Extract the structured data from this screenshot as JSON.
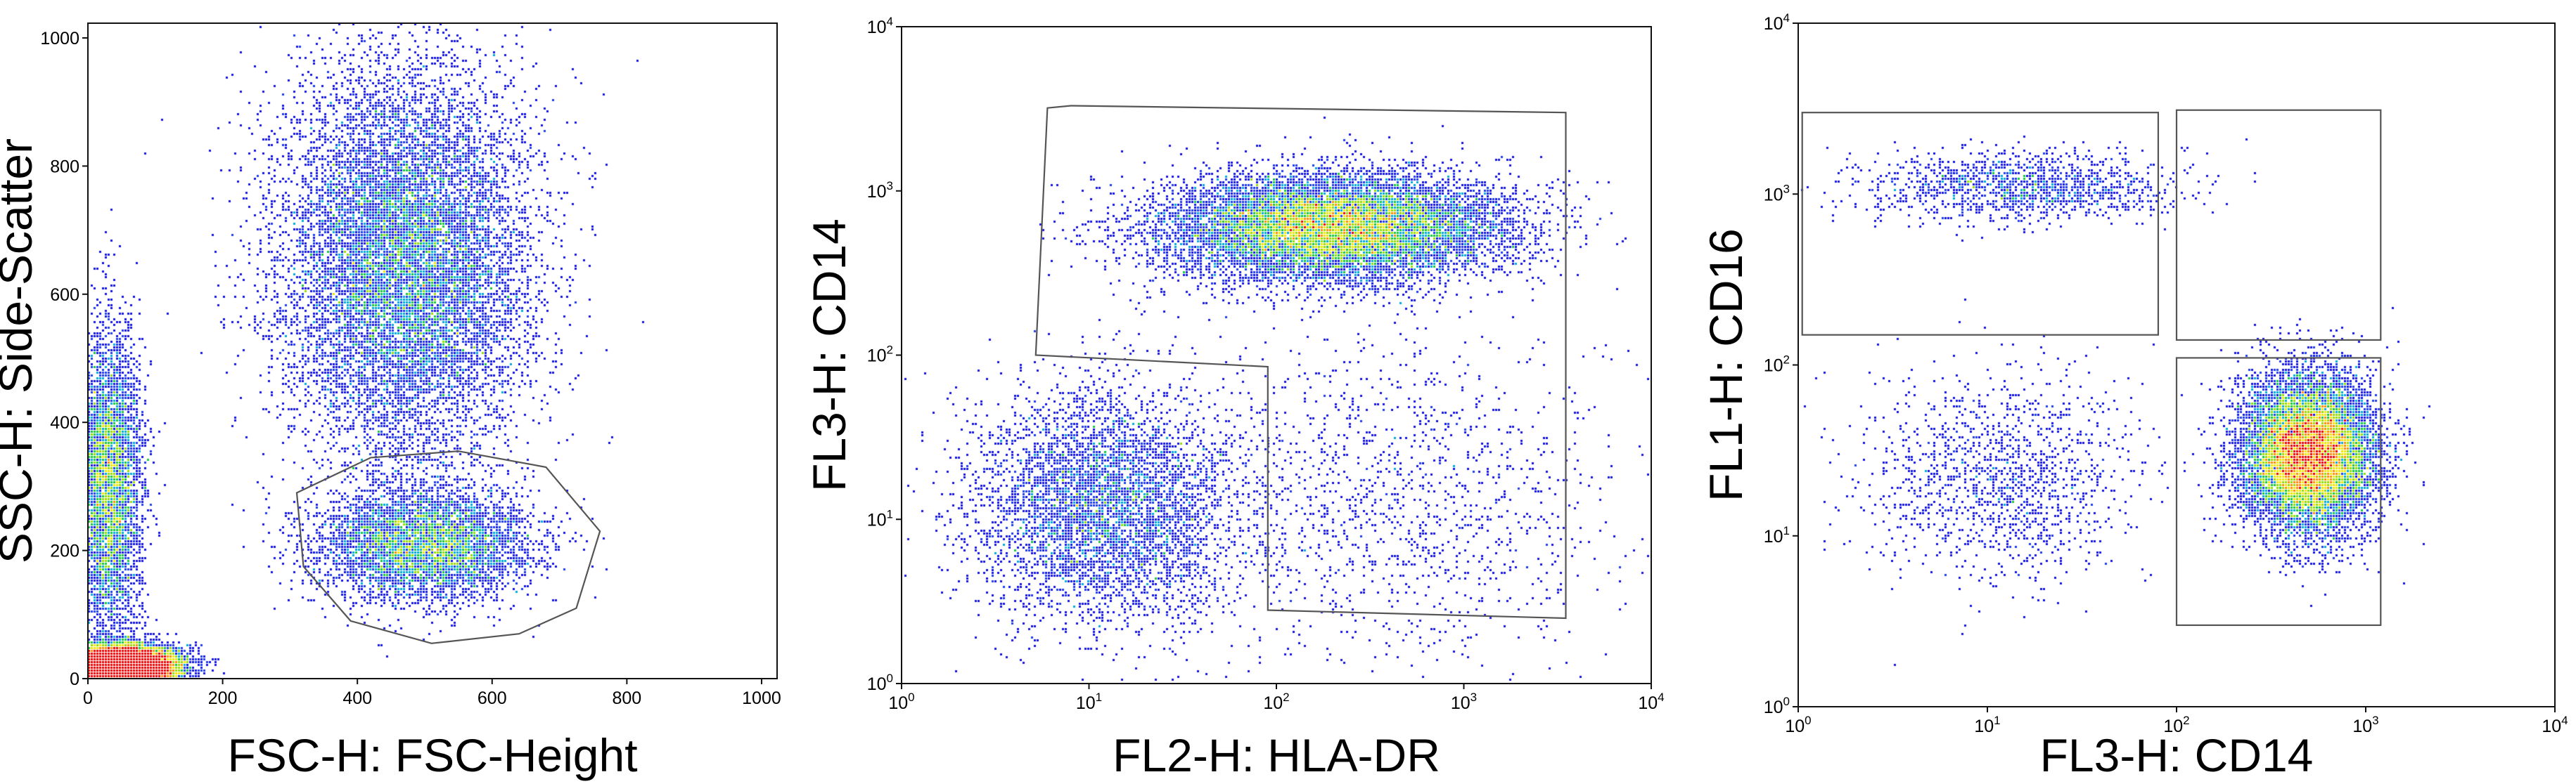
{
  "chart_data": [
    {
      "type": "scatter",
      "title": "",
      "xlabel": "FSC-H: FSC-Height",
      "ylabel": "SSC-H: Side-Scatter",
      "xscale": "linear",
      "yscale": "linear",
      "xlim": [
        0,
        1023
      ],
      "ylim": [
        0,
        1023
      ],
      "xticks": [
        "0",
        "200",
        "400",
        "600",
        "800",
        "1000"
      ],
      "yticks": [
        "0",
        "200",
        "400",
        "600",
        "800",
        "1000"
      ],
      "colormap": "density: blue (low) to green, yellow, red (high)",
      "populations": [
        {
          "label": "",
          "center": [
            470,
            650
          ],
          "spread": [
            90,
            150
          ],
          "density": "high"
        },
        {
          "label": "",
          "center": [
            500,
            210
          ],
          "spread": [
            80,
            45
          ],
          "density": "medium"
        },
        {
          "label": "",
          "center": [
            30,
            300
          ],
          "spread": [
            25,
            120
          ],
          "density": "medium"
        },
        {
          "label": "",
          "center": [
            50,
            20
          ],
          "spread": [
            40,
            15
          ],
          "density": "very high"
        }
      ],
      "gate_polygon": [
        [
          310,
          290
        ],
        [
          420,
          345
        ],
        [
          550,
          355
        ],
        [
          680,
          330
        ],
        [
          760,
          230
        ],
        [
          725,
          110
        ],
        [
          640,
          70
        ],
        [
          510,
          55
        ],
        [
          390,
          90
        ],
        [
          320,
          175
        ]
      ]
    },
    {
      "type": "scatter",
      "title": "",
      "xlabel": "FL2-H: HLA-DR",
      "ylabel": "FL3-H: CD14",
      "xscale": "log",
      "yscale": "log",
      "xlim": [
        1,
        10000
      ],
      "ylim": [
        1,
        10000
      ],
      "xticks": [
        "10^0",
        "10^1",
        "10^2",
        "10^3",
        "10^4"
      ],
      "yticks": [
        "10^0",
        "10^1",
        "10^2",
        "10^3",
        "10^4"
      ],
      "colormap": "density: blue (low) to green, yellow, red (high)",
      "populations": [
        {
          "label": "",
          "center": [
            200,
            600
          ],
          "spread_log10": [
            0.45,
            0.16
          ],
          "density": "high"
        },
        {
          "label": "",
          "center": [
            12,
            12
          ],
          "spread_log10": [
            0.35,
            0.35
          ],
          "density": "medium"
        },
        {
          "label": "",
          "center": [
            400,
            12
          ],
          "spread_log10": [
            0.6,
            0.5
          ],
          "density": "low"
        }
      ],
      "gate_polygon": [
        [
          6,
          3200
        ],
        [
          8,
          3300
        ],
        [
          3500,
          3000
        ],
        [
          3500,
          2.5
        ],
        [
          90,
          2.8
        ],
        [
          90,
          85
        ],
        [
          5.2,
          100
        ]
      ]
    },
    {
      "type": "scatter",
      "title": "",
      "xlabel": "FL3-H: CD14",
      "ylabel": "FL1-H: CD16",
      "xscale": "log",
      "yscale": "log",
      "xlim": [
        1,
        10000
      ],
      "ylim": [
        1,
        10000
      ],
      "xticks": [
        "10^0",
        "10^1",
        "10^2",
        "10^3",
        "10^4"
      ],
      "yticks": [
        "10^0",
        "10^1",
        "10^2",
        "10^3",
        "10^4"
      ],
      "colormap": "density: blue (low) to green, yellow, red (high)",
      "populations": [
        {
          "label": "",
          "center": [
            500,
            30
          ],
          "spread_log10": [
            0.17,
            0.22
          ],
          "density": "high"
        },
        {
          "label": "",
          "center": [
            12,
            22
          ],
          "spread_log10": [
            0.35,
            0.3
          ],
          "density": "low"
        },
        {
          "label": "",
          "center": [
            15,
            1100
          ],
          "spread_log10": [
            0.4,
            0.1
          ],
          "density": "low"
        }
      ],
      "gates": [
        {
          "x": [
            1.05,
            80
          ],
          "y": [
            150,
            3000
          ]
        },
        {
          "x": [
            100,
            1200
          ],
          "y": [
            140,
            3100
          ]
        },
        {
          "x": [
            100,
            1200
          ],
          "y": [
            3,
            110
          ]
        }
      ]
    }
  ]
}
